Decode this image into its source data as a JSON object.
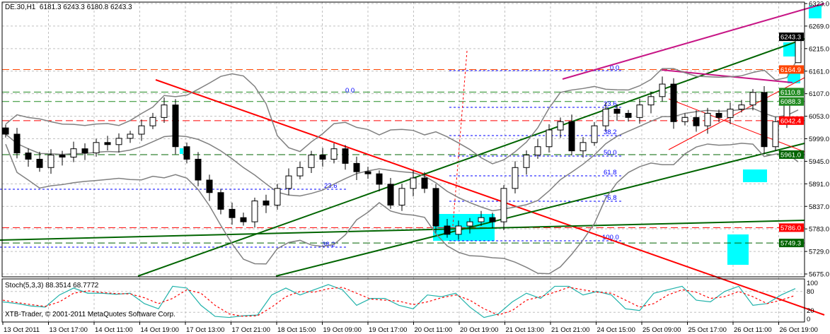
{
  "header": {
    "symbol": "DE.30,H1",
    "ohlc": "6181.3 6243.3 6180.8 6243.3"
  },
  "indicator_label": "Stoch(5,3,3) 88.3514 68.7772",
  "copyright": "XTB-Trader, © 2001-2011 MetaQuotes Software Corp.",
  "colors": {
    "bull": "#ffffff",
    "bear": "#000000",
    "grid": "#c0c0c0",
    "stoch_main": "#20b2aa",
    "stoch_signal": "#ff0000",
    "zone": "#00ffff"
  },
  "chart_data": [
    {
      "type": "candlestick",
      "title": "DE.30,H1",
      "ylim": [
        5675,
        6323
      ],
      "y_ticks": [
        "6323.0",
        "6269.0",
        "6215.0",
        "6161.0",
        "6107.0",
        "6053.0",
        "5999.0",
        "5945.0",
        "5891.0",
        "5837.0",
        "5783.0",
        "5729.0",
        "5675.0"
      ],
      "x_ticks": [
        "13 Oct 2011",
        "13 Oct 17:00",
        "14 Oct 11:00",
        "14 Oct 19:00",
        "17 Oct 13:00",
        "17 Oct 21:00",
        "18 Oct 15:00",
        "19 Oct 09:00",
        "19 Oct 17:00",
        "20 Oct 11:00",
        "20 Oct 19:00",
        "21 Oct 13:00",
        "21 Oct 21:00",
        "24 Oct 15:00",
        "25 Oct 09:00",
        "25 Oct 17:00",
        "26 Oct 11:00",
        "26 Oct 19:00"
      ],
      "grid": true,
      "last_candle": {
        "open": 6181.3,
        "high": 6243.3,
        "low": 6180.8,
        "close": 6243.3
      },
      "closes": [
        6010,
        5965,
        5950,
        5930,
        5960,
        5955,
        5975,
        5965,
        5990,
        5985,
        6000,
        6010,
        6030,
        6050,
        6080,
        5980,
        5950,
        5900,
        5870,
        5830,
        5810,
        5800,
        5850,
        5840,
        5880,
        5910,
        5930,
        5960,
        5950,
        5975,
        5940,
        5920,
        5915,
        5890,
        5840,
        5880,
        5905,
        5880,
        5790,
        5770,
        5790,
        5800,
        5810,
        5800,
        5880,
        5930,
        5960,
        5980,
        6020,
        6040,
        5970,
        5990,
        6030,
        6070,
        6060,
        6050,
        6080,
        6100,
        6130,
        6040,
        6050,
        6030,
        6060,
        6050,
        6070,
        6080,
        6110,
        5980,
        6040,
        6080,
        6181.3
      ],
      "price_levels": [
        {
          "value": 6243.3,
          "label": "6243.3",
          "color": "#000000"
        },
        {
          "value": 6164.9,
          "label": "6164.9",
          "color": "#ff4500"
        },
        {
          "value": 6110.8,
          "label": "6110.8",
          "color": "#228b22"
        },
        {
          "value": 6088.3,
          "label": "6088.3",
          "color": "#228b22"
        },
        {
          "value": 6042.4,
          "label": "6042.4",
          "color": "#ff0000"
        },
        {
          "value": 5961.0,
          "label": "5961.0",
          "color": "#006400"
        },
        {
          "value": 5786.0,
          "label": "5786.0",
          "color": "#ff0000"
        },
        {
          "value": 5749.3,
          "label": "5749.3",
          "color": "#006400"
        }
      ],
      "fibonacci": {
        "right": [
          "0.0",
          "23.6",
          "38.2",
          "50.0",
          "61.8",
          "76.8",
          "100.0"
        ],
        "left": [
          "0.0",
          "23.6",
          "38.2"
        ]
      }
    },
    {
      "type": "line",
      "title": "Stoch(5,3,3) 88.3514 68.7772",
      "ylim": [
        0,
        100
      ],
      "y_ticks": [
        "100",
        "80",
        "20",
        "0"
      ],
      "series": [
        {
          "values": [
            50,
            45,
            38,
            35,
            70,
            90,
            75,
            75,
            72,
            75,
            45,
            30,
            95,
            90,
            40,
            8,
            5,
            10,
            12,
            70,
            90,
            70,
            85,
            100,
            85,
            40,
            60,
            60,
            40,
            30,
            70,
            65,
            75,
            35,
            5,
            15,
            50,
            75,
            60,
            95,
            95,
            70,
            80,
            70,
            30,
            25,
            75,
            85,
            95,
            55,
            50,
            80,
            95,
            40,
            45,
            70,
            88.35
          ]
        },
        {
          "values": [
            55,
            48,
            42,
            37,
            50,
            75,
            82,
            77,
            74,
            73,
            62,
            45,
            60,
            85,
            75,
            40,
            15,
            8,
            10,
            35,
            65,
            80,
            78,
            88,
            92,
            75,
            58,
            55,
            52,
            42,
            50,
            62,
            70,
            55,
            30,
            12,
            25,
            55,
            65,
            78,
            92,
            85,
            78,
            75,
            55,
            35,
            45,
            70,
            85,
            78,
            60,
            65,
            80,
            65,
            45,
            55,
            68.78
          ]
        }
      ]
    }
  ]
}
